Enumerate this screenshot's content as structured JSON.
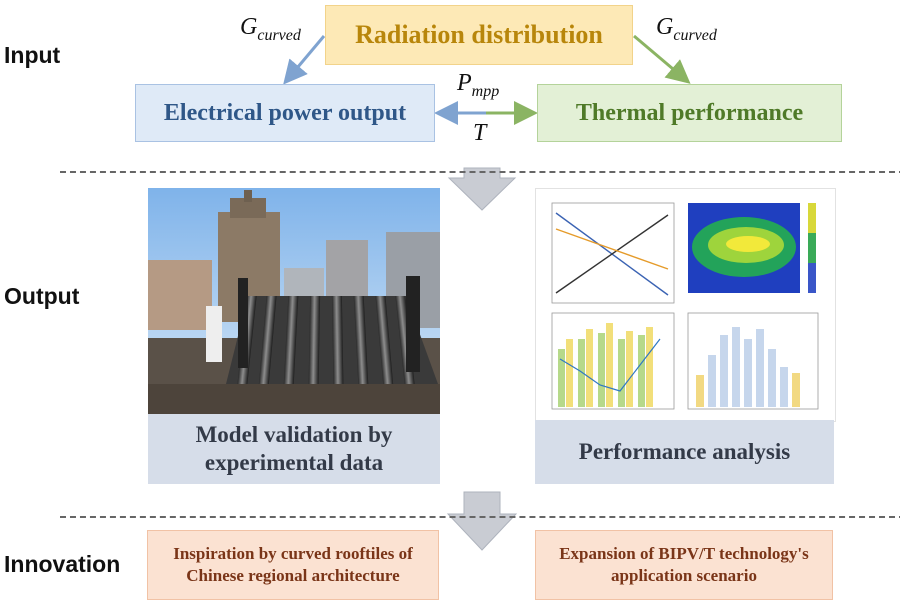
{
  "sections": {
    "input": "Input",
    "output": "Output",
    "innovation": "Innovation"
  },
  "input": {
    "radiation_box": "Radiation distribution",
    "electrical_box": "Electrical power output",
    "thermal_box": "Thermal performance",
    "g_left": {
      "base": "G",
      "sub": "curved"
    },
    "g_right": {
      "base": "G",
      "sub": "curved"
    },
    "p_mpp": {
      "base": "P",
      "sub": "mpp"
    },
    "t_label": "T"
  },
  "output": {
    "validation_caption": "Model validation by experimental data",
    "analysis_caption": "Performance analysis"
  },
  "innovation": {
    "left_box": "Inspiration by curved rooftiles of Chinese regional architecture",
    "right_box": "Expansion of BIPV/T technology's application scenario"
  },
  "colors": {
    "radiation_text": "#b8860b",
    "electrical_text": "#2f5788",
    "thermal_text": "#4f7a28",
    "innovation_text": "#7a3518",
    "caption_bg": "#d6dde9",
    "arrow_grey": "#c9ccd3"
  }
}
